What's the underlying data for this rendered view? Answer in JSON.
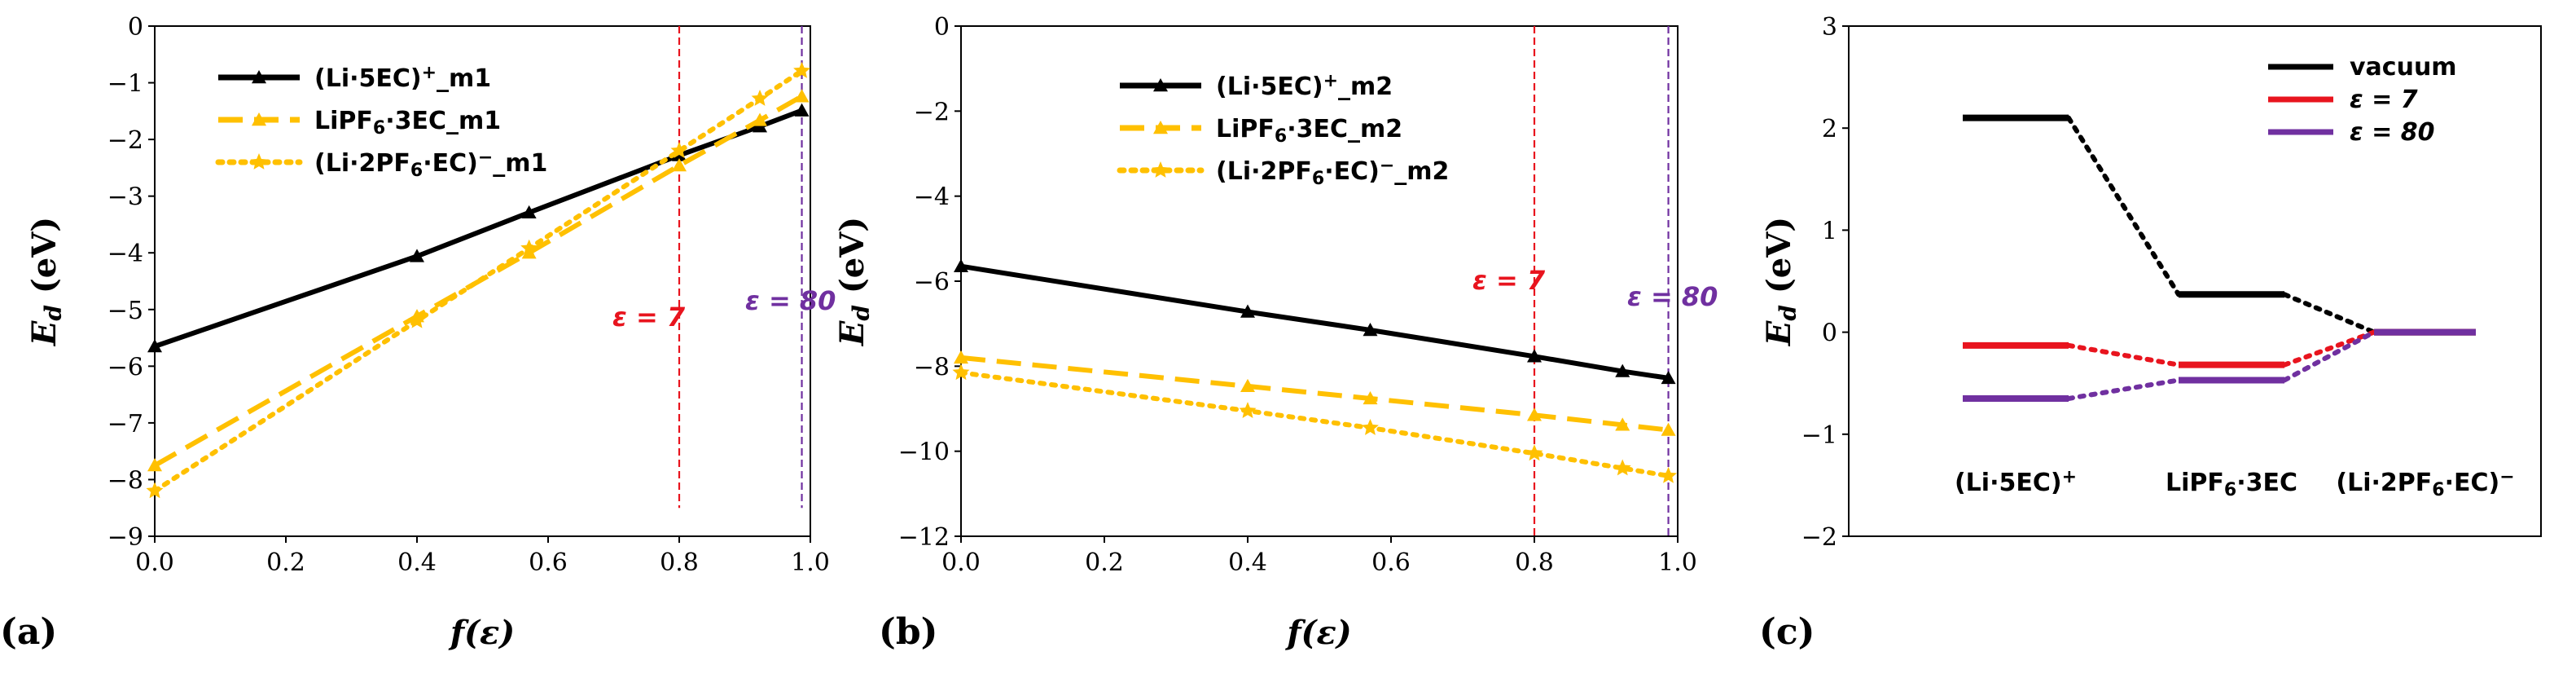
{
  "colors": {
    "black": "#000000",
    "gold": "#FFC000",
    "red": "#E8141E",
    "purple": "#7030A0"
  },
  "chart_data": [
    {
      "panel": "(a)",
      "type": "line",
      "xlabel": "f(ε)",
      "ylabel": "Ed (eV)",
      "xlim": [
        0.0,
        1.0
      ],
      "ylim": [
        -9,
        0
      ],
      "xticks": [
        "0.0",
        "0.2",
        "0.4",
        "0.6",
        "0.8",
        "1.0"
      ],
      "yticks": [
        "0",
        "−1",
        "−2",
        "−3",
        "−4",
        "−5",
        "−6",
        "−7",
        "−8",
        "−9"
      ],
      "series": [
        {
          "name": "(Li·5EC)⁺_m1",
          "legend": [
            "(Li·5EC)",
            "⁺",
            "_m1"
          ],
          "style": "solid",
          "color": "#000000",
          "marker": "triangle",
          "x": [
            0.0,
            0.4,
            0.571,
            0.8,
            0.923,
            0.987
          ],
          "y": [
            -5.65,
            -4.06,
            -3.29,
            -2.28,
            -1.77,
            -1.49
          ]
        },
        {
          "name": "LiPF₆·3EC_m1",
          "legend": [
            "LiPF",
            "₆",
            "·3EC_m1"
          ],
          "style": "dashed",
          "color": "#FFC000",
          "marker": "triangle",
          "x": [
            0.0,
            0.4,
            0.571,
            0.8,
            0.923,
            0.987
          ],
          "y": [
            -7.75,
            -5.12,
            -4.0,
            -2.46,
            -1.66,
            -1.24
          ]
        },
        {
          "name": "(Li·2PF₆·EC)⁻_m1",
          "legend": [
            "(Li·2PF",
            "₆",
            "·EC)",
            "⁻",
            "_m1"
          ],
          "style": "dotted",
          "color": "#FFC000",
          "marker": "star",
          "x": [
            0.0,
            0.4,
            0.571,
            0.8,
            0.923,
            0.987
          ],
          "y": [
            -8.2,
            -5.2,
            -3.92,
            -2.2,
            -1.28,
            -0.79
          ]
        }
      ],
      "vlines": [
        {
          "x": 0.8,
          "label": "ε = 7",
          "color": "#E8141E",
          "ymin": -8.5
        },
        {
          "x": 0.987,
          "label": "ε = 80",
          "color": "#7030A0",
          "ymin": -8.5
        }
      ]
    },
    {
      "panel": "(b)",
      "type": "line",
      "xlabel": "f(ε)",
      "ylabel": "Ed (eV)",
      "xlim": [
        0.0,
        1.0
      ],
      "ylim": [
        -12,
        0
      ],
      "xticks": [
        "0.0",
        "0.2",
        "0.4",
        "0.6",
        "0.8",
        "1.0"
      ],
      "yticks": [
        "0",
        "−2",
        "−4",
        "−6",
        "−8",
        "−10",
        "−12"
      ],
      "series": [
        {
          "name": "(Li·5EC)⁺_m2",
          "legend": [
            "(Li·5EC)",
            "⁺",
            "_m2"
          ],
          "style": "solid",
          "color": "#000000",
          "marker": "triangle",
          "x": [
            0.0,
            0.4,
            0.571,
            0.8,
            0.923,
            0.987
          ],
          "y": [
            -5.65,
            -6.72,
            -7.15,
            -7.77,
            -8.12,
            -8.28
          ]
        },
        {
          "name": "LiPF₆·3EC_m2",
          "legend": [
            "LiPF",
            "₆",
            "·3EC_m2"
          ],
          "style": "dashed",
          "color": "#FFC000",
          "marker": "triangle",
          "x": [
            0.0,
            0.4,
            0.571,
            0.8,
            0.923,
            0.987
          ],
          "y": [
            -7.8,
            -8.47,
            -8.76,
            -9.15,
            -9.38,
            -9.5
          ]
        },
        {
          "name": "(Li·2PF₆·EC)⁻_m2",
          "legend": [
            "(Li·2PF",
            "₆",
            "·EC)",
            "⁻",
            "_m2"
          ],
          "style": "dotted",
          "color": "#FFC000",
          "marker": "star",
          "x": [
            0.0,
            0.4,
            0.571,
            0.8,
            0.923,
            0.987
          ],
          "y": [
            -8.15,
            -9.05,
            -9.45,
            -10.05,
            -10.4,
            -10.58
          ]
        }
      ],
      "vlines": [
        {
          "x": 0.8,
          "label": "ε = 7",
          "color": "#E8141E",
          "ymin": -12
        },
        {
          "x": 0.987,
          "label": "ε = 80",
          "color": "#7030A0",
          "ymin": -12
        }
      ]
    },
    {
      "panel": "(c)",
      "type": "energy-level",
      "ylabel": "Ed (eV)",
      "ylim": [
        -2,
        3
      ],
      "yticks": [
        "3",
        "2",
        "1",
        "0",
        "−1",
        "−2"
      ],
      "categories": [
        {
          "name": "(Li·5EC)⁺",
          "parts": [
            "(Li·5EC)",
            "⁺"
          ]
        },
        {
          "name": "LiPF₆·3EC",
          "parts": [
            "LiPF",
            "₆",
            "·3EC"
          ]
        },
        {
          "name": "(Li·2PF₆·EC)⁻",
          "parts": [
            "(Li·2PF",
            "₆",
            "·EC)",
            "⁻"
          ]
        }
      ],
      "series": [
        {
          "name": "vacuum",
          "color": "#000000",
          "values": [
            2.1,
            0.37,
            0.0
          ]
        },
        {
          "name": "ε = 7",
          "color": "#E8141E",
          "values": [
            -0.13,
            -0.32,
            0.0
          ]
        },
        {
          "name": "ε = 80",
          "color": "#7030A0",
          "values": [
            -0.65,
            -0.47,
            0.0
          ]
        }
      ]
    }
  ]
}
